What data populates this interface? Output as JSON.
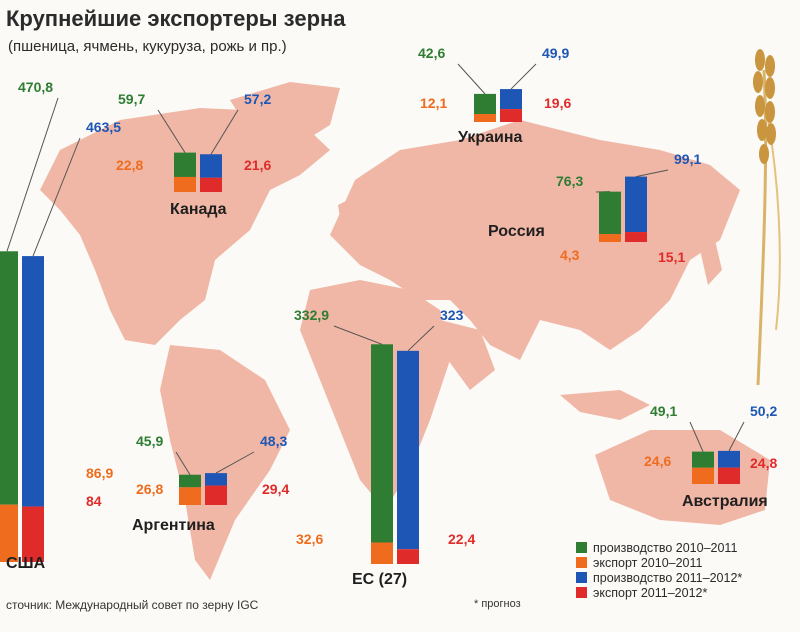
{
  "header": {
    "title": "Крупнейшие экспортеры зерна",
    "subtitle": "(пшеница, ячмень, кукуруза, рожь и пр.)"
  },
  "source": "сточник: Международный совет по зерну IGC",
  "footnote": "* прогноз",
  "legend": [
    {
      "label": "производство 2010–2011",
      "color": "#2e7d32"
    },
    {
      "label": "экспорт 2010–2011",
      "color": "#ef6c1e"
    },
    {
      "label": "производство 2011–2012*",
      "color": "#1e56b5"
    },
    {
      "label": "экспорт 2011–2012*",
      "color": "#e02b2b"
    }
  ],
  "chart_data": {
    "type": "bar",
    "title": "Крупнейшие экспортеры зерна",
    "subtitle": "(пшеница, ячмень, кукуруза, рожь и пр.)",
    "units": "",
    "series_names": [
      "производство 2010–2011",
      "экспорт 2010–2011",
      "производство 2011–2012*",
      "экспорт 2011–2012*"
    ],
    "colors": {
      "prod1": "#2e7d32",
      "exp1": "#ef6c1e",
      "prod2": "#1e56b5",
      "exp2": "#e02b2b"
    },
    "countries": [
      {
        "name": "США",
        "prod_2010_2011": 470.8,
        "exp_2010_2011": 86.9,
        "prod_2011_2012": 463.5,
        "exp_2011_2012": 84
      },
      {
        "name": "Канада",
        "prod_2010_2011": 59.7,
        "exp_2010_2011": 22.8,
        "prod_2011_2012": 57.2,
        "exp_2011_2012": 21.6
      },
      {
        "name": "Украина",
        "prod_2010_2011": 42.6,
        "exp_2010_2011": 12.1,
        "prod_2011_2012": 49.9,
        "exp_2011_2012": 19.6
      },
      {
        "name": "Россия",
        "prod_2010_2011": 76.3,
        "exp_2010_2011": 4.3,
        "prod_2011_2012": 99.1,
        "exp_2011_2012": 15.1
      },
      {
        "name": "ЕС (27)",
        "prod_2010_2011": 332.9,
        "exp_2010_2011": 32.6,
        "prod_2011_2012": 323,
        "exp_2011_2012": 22.4
      },
      {
        "name": "Аргентина",
        "prod_2010_2011": 45.9,
        "exp_2010_2011": 26.8,
        "prod_2011_2012": 48.3,
        "exp_2011_2012": 29.4
      },
      {
        "name": "Австралия",
        "prod_2010_2011": 49.1,
        "exp_2010_2011": 24.6,
        "prod_2011_2012": 50.2,
        "exp_2011_2012": 24.8
      }
    ]
  }
}
